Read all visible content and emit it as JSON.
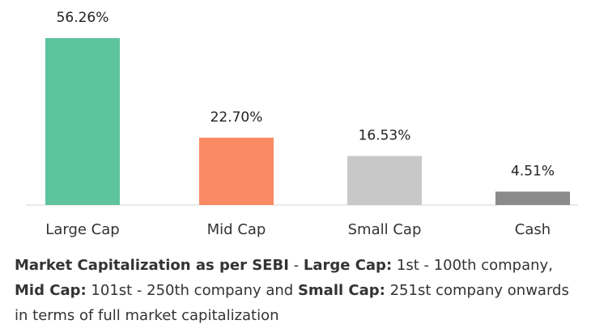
{
  "chart_data": {
    "type": "bar",
    "categories": [
      "Large Cap",
      "Mid Cap",
      "Small Cap",
      "Cash"
    ],
    "values": [
      56.26,
      22.7,
      16.53,
      4.51
    ],
    "value_labels": [
      "56.26%",
      "22.70%",
      "16.53%",
      "4.51%"
    ],
    "colors": [
      "#5ec49e",
      "#f98a63",
      "#c8c8c8",
      "#8a8a8a"
    ],
    "ylim": [
      0,
      56.26
    ],
    "grid": false,
    "legend": "none"
  },
  "footnote": {
    "p1": "Market Capitalization as per SEBI",
    "p2": " - ",
    "p3": "Large Cap:",
    "p4": " 1st - 100th company, ",
    "p5": "Mid Cap:",
    "p6": " 101st - 250th company and ",
    "p7": "Small Cap:",
    "p8": " 251st company onwards in terms of full market capitalization"
  }
}
